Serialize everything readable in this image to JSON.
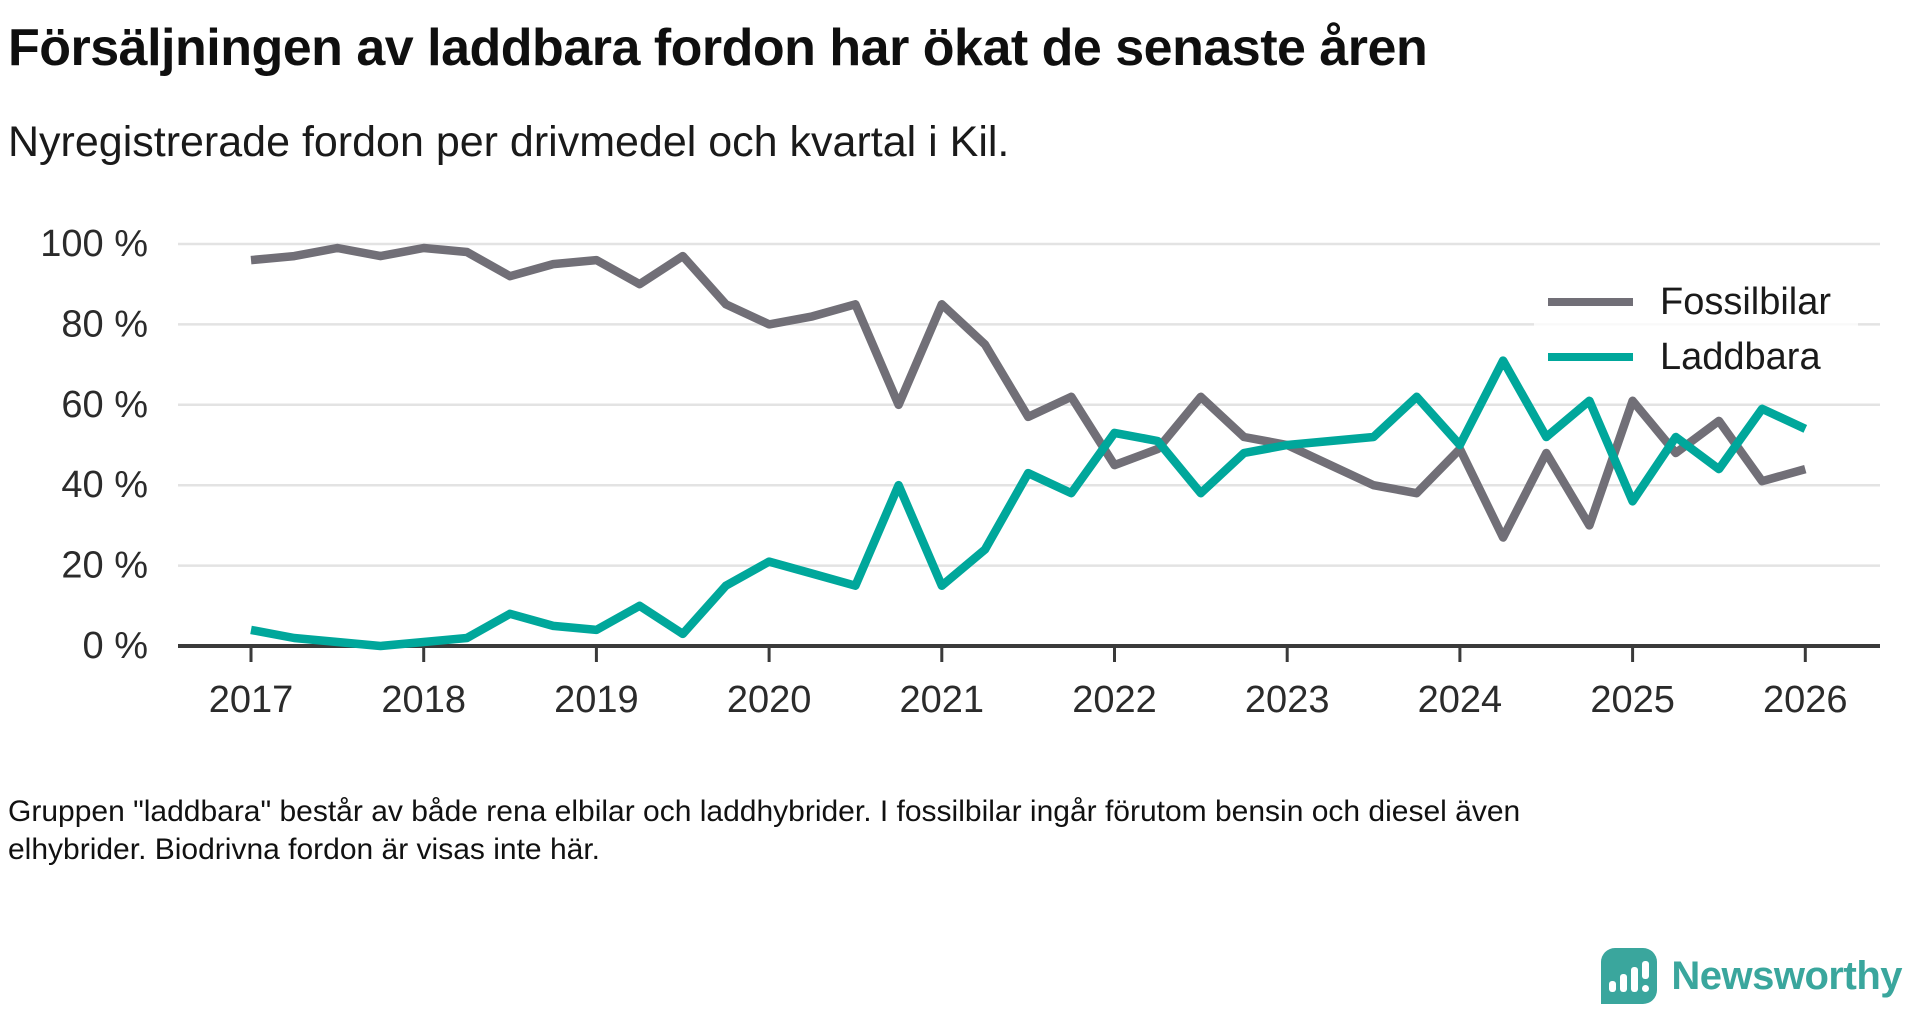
{
  "title": "Försäljningen av laddbara fordon har ökat de senaste åren",
  "subtitle": "Nyregistrerade fordon per drivmedel och kvartal i Kil.",
  "footnote": {
    "lines": [
      "Gruppen \"laddbara\" består av både rena elbilar och laddhybrider. I fossilbilar ingår förutom bensin och diesel även",
      "elhybrider. Biodrivna fordon är visas inte här."
    ]
  },
  "logo": {
    "text": "Newsworthy",
    "icon": "newsworthy-bar-chart-exclamation-icon",
    "color": "#3aa69d"
  },
  "colors": {
    "fossil_line": "#716f77",
    "laddbara_line": "#00a79b",
    "axis": "#3a3a3a",
    "gridline": "#e3e3e3",
    "tick_label": "#2b2b2b",
    "legend_text": "#1a1a1a"
  },
  "chart_data": {
    "type": "line",
    "title": "",
    "xlabel": "",
    "ylabel": "",
    "ylim": [
      0,
      100
    ],
    "y_tick_step": 20,
    "y_tick_labels": [
      "0 %",
      "20 %",
      "40 %",
      "60 %",
      "80 %",
      "100 %"
    ],
    "x_tick_labels": [
      "2017",
      "2018",
      "2019",
      "2020",
      "2021",
      "2022",
      "2023",
      "2024",
      "2025",
      "2026"
    ],
    "grid": "horizontal",
    "legend_position": "inside-upper-right",
    "quarters": [
      "2017 Q1",
      "2017 Q2",
      "2017 Q3",
      "2017 Q4",
      "2018 Q1",
      "2018 Q2",
      "2018 Q3",
      "2018 Q4",
      "2019 Q1",
      "2019 Q2",
      "2019 Q3",
      "2019 Q4",
      "2020 Q1",
      "2020 Q2",
      "2020 Q3",
      "2020 Q4",
      "2021 Q1",
      "2021 Q2",
      "2021 Q3",
      "2021 Q4",
      "2022 Q1",
      "2022 Q2",
      "2022 Q3",
      "2022 Q4",
      "2023 Q1",
      "2023 Q2",
      "2023 Q3",
      "2023 Q4",
      "2024 Q1",
      "2024 Q2",
      "2024 Q3",
      "2024 Q4",
      "2025 Q1",
      "2025 Q2",
      "2025 Q3",
      "2025 Q4",
      "2026 Q1"
    ],
    "unit": "%",
    "series": [
      {
        "name": "Fossilbilar",
        "color": "#716f77",
        "values": [
          96,
          97,
          99,
          97,
          99,
          98,
          92,
          95,
          96,
          90,
          97,
          85,
          80,
          82,
          85,
          60,
          85,
          75,
          57,
          62,
          45,
          49,
          62,
          52,
          50,
          45,
          40,
          38,
          49,
          27,
          48,
          30,
          61,
          48,
          56,
          41,
          44
        ]
      },
      {
        "name": "Laddbara",
        "color": "#00a79b",
        "values": [
          4,
          2,
          1,
          0,
          1,
          2,
          8,
          5,
          4,
          10,
          3,
          15,
          21,
          18,
          15,
          40,
          15,
          24,
          43,
          38,
          53,
          51,
          38,
          48,
          50,
          51,
          52,
          62,
          50,
          71,
          52,
          61,
          36,
          52,
          44,
          59,
          54
        ]
      }
    ]
  }
}
